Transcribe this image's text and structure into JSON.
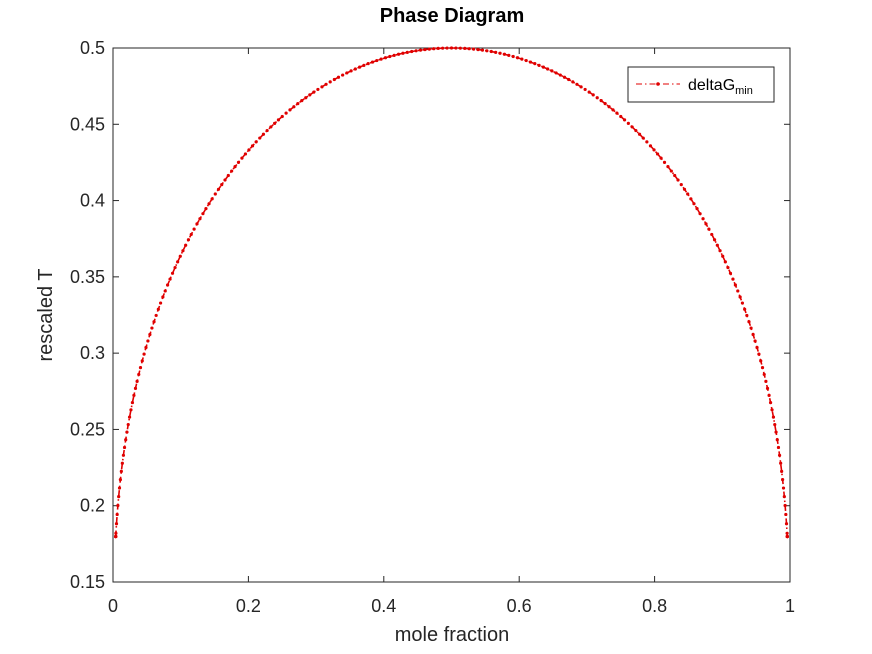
{
  "colors": {
    "series": "#e00000",
    "axis": "#262626",
    "background": "#ffffff"
  },
  "chart_data": {
    "type": "line",
    "title": "Phase Diagram",
    "xlabel": "mole fraction",
    "ylabel": "rescaled T",
    "xlim": [
      0,
      1
    ],
    "ylim": [
      0.15,
      0.5
    ],
    "x_ticks": [
      "0",
      "0.2",
      "0.4",
      "0.6",
      "0.8",
      "1"
    ],
    "y_ticks": [
      "0.15",
      "0.2",
      "0.25",
      "0.3",
      "0.35",
      "0.4",
      "0.45",
      "0.5"
    ],
    "grid": false,
    "legend": {
      "position": "top-right",
      "label_main": "deltaG",
      "label_sub": "min"
    },
    "series": [
      {
        "name": "deltaGmin",
        "line_style": "dash-dot",
        "marker": "point",
        "x_min": 0.004,
        "x_max": 0.996,
        "y_peak": 0.5,
        "y_end": 0.166
      }
    ]
  }
}
